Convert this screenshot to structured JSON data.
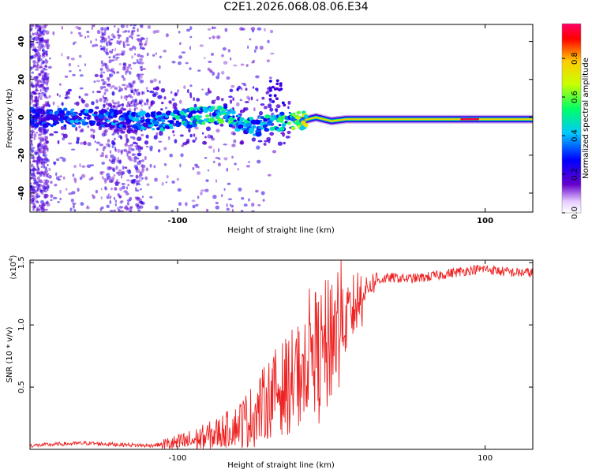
{
  "chart_data": [
    {
      "type": "heatmap",
      "title": "C2E1.2026.068.08.06.E34",
      "xlabel": "Height of straight line (km)",
      "ylabel": "Frequency (Hz)",
      "xlim": [
        -196,
        131
      ],
      "ylim": [
        -50,
        49
      ],
      "xticks": [
        -100,
        100
      ],
      "yticks": [
        40,
        20,
        0,
        -20,
        -40
      ],
      "colorbar": {
        "label": "Normalized spectral amplitude",
        "range": [
          0,
          0.98
        ],
        "ticks": [
          "0.0",
          "0.2",
          "0.4",
          "0.6",
          "0.8"
        ],
        "colors": [
          "#ffffff",
          "#6600cc",
          "#0000ff",
          "#00c8ff",
          "#00ff66",
          "#c8ff00",
          "#ffcc00",
          "#ff0000",
          "#ff0066"
        ]
      },
      "ridge": {
        "x": [
          -196,
          -170,
          -150,
          -130,
          -110,
          -90,
          -70,
          -60,
          -50,
          -40,
          -30,
          -20,
          -10,
          0,
          10,
          30,
          60,
          90,
          110,
          131
        ],
        "freq": [
          0,
          0,
          0,
          -2,
          -2,
          0,
          2,
          -3,
          -5,
          -3,
          -2,
          -2,
          0,
          -2,
          -1,
          -1,
          -1,
          -1,
          -1,
          -1
        ],
        "amplitude": [
          0.25,
          0.3,
          0.3,
          0.3,
          0.35,
          0.4,
          0.45,
          0.4,
          0.35,
          0.4,
          0.45,
          0.55,
          0.75,
          0.6,
          0.5,
          0.5,
          0.55,
          0.95,
          0.55,
          0.5
        ]
      }
    },
    {
      "type": "line",
      "xlabel": "Height of straight line (km)",
      "ylabel": "SNR (10 * v/v)",
      "multiplier": "(x10",
      "multiplier_exp": "4",
      "xlim": [
        -196,
        131
      ],
      "ylim": [
        0,
        1.52
      ],
      "xticks": [
        -100,
        100
      ],
      "yticks": [
        "0.5",
        "1.0",
        "1.5"
      ],
      "ytick_values": [
        0.5,
        1.0,
        1.5
      ],
      "series": [
        {
          "name": "SNR",
          "color": "#ee2222",
          "x": [
            -196,
            -180,
            -160,
            -140,
            -120,
            -100,
            -90,
            -80,
            -70,
            -60,
            -50,
            -45,
            -40,
            -35,
            -30,
            -25,
            -20,
            -18,
            -15,
            -12,
            -10,
            -8,
            -5,
            -2,
            0,
            5,
            10,
            15,
            20,
            25,
            30,
            40,
            50,
            60,
            70,
            80,
            90,
            100,
            110,
            120,
            131
          ],
          "values": [
            0.03,
            0.04,
            0.05,
            0.04,
            0.03,
            0.05,
            0.07,
            0.1,
            0.15,
            0.2,
            0.28,
            0.35,
            0.42,
            0.48,
            0.5,
            0.55,
            0.62,
            0.7,
            0.8,
            0.82,
            0.78,
            0.72,
            0.78,
            0.85,
            0.95,
            0.98,
            1.05,
            1.15,
            1.25,
            1.32,
            1.36,
            1.38,
            1.37,
            1.38,
            1.4,
            1.42,
            1.44,
            1.45,
            1.43,
            1.42,
            1.42
          ]
        }
      ]
    }
  ]
}
